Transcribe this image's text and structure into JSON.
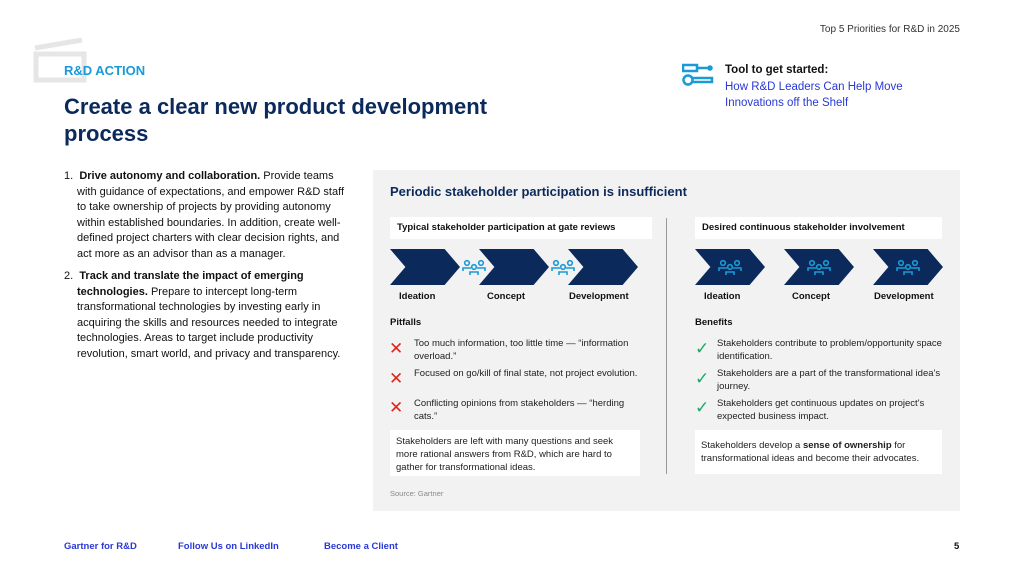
{
  "header": {
    "doc_title": "Top 5 Priorities for R&D in 2025",
    "kicker": "R&D ACTION",
    "title": "Create a clear new product development process"
  },
  "tool": {
    "label": "Tool to get started:",
    "link": "How R&D Leaders Can Help Move Innovations off the Shelf",
    "icon": "key-icon"
  },
  "list": [
    {
      "num": "1.",
      "bold": "Drive autonomy and collaboration.",
      "text": " Provide teams with guidance of expectations, and empower R&D staff to take ownership of projects by providing autonomy within established boundaries. In addition, create well-defined project charters with clear decision rights, and act more as an advisor than as a manager."
    },
    {
      "num": "2.",
      "bold": "Track and translate the impact of emerging technologies.",
      "text": " Prepare to intercept long-term transformational technologies by investing early in acquiring the skills and resources needed to integrate technologies. Areas to target include productivity revolution, smart world, and privacy and transparency."
    }
  ],
  "panel": {
    "title": "Periodic stakeholder participation is insufficient",
    "left": {
      "subtitle": "Typical stakeholder participation at gate reviews",
      "stages": [
        "Ideation",
        "Concept",
        "Development"
      ],
      "section": "Pitfalls",
      "items": [
        "Too much information, too little time — “information overload.”",
        "Focused on go/kill of final state, not project evolution.",
        "Conflicting opinions from stakeholders — “herding cats.”"
      ],
      "summary": "Stakeholders are left with many questions and seek more rational answers from R&D, which are hard to gather for transformational ideas."
    },
    "right": {
      "subtitle": "Desired continuous stakeholder involvement",
      "stages": [
        "Ideation",
        "Concept",
        "Development"
      ],
      "section": "Benefits",
      "items": [
        "Stakeholders contribute to problem/opportunity space identification.",
        "Stakeholders are a part of the transformational idea's journey.",
        "Stakeholders get continuous updates on project's expected business impact."
      ],
      "summary_pre": "Stakeholders develop a ",
      "summary_bold": "sense of ownership",
      "summary_post": " for transformational ideas and become their advocates."
    },
    "source": "Source: Gartner"
  },
  "footer": {
    "links": [
      "Gartner for R&D",
      "Follow Us on LinkedIn",
      "Become a Client"
    ],
    "page": "5"
  },
  "colors": {
    "navy": "#0b2a5b",
    "accent": "#1a9ad6",
    "link": "#2a38d6",
    "cross": "#e0261b",
    "check": "#1aa86b"
  }
}
